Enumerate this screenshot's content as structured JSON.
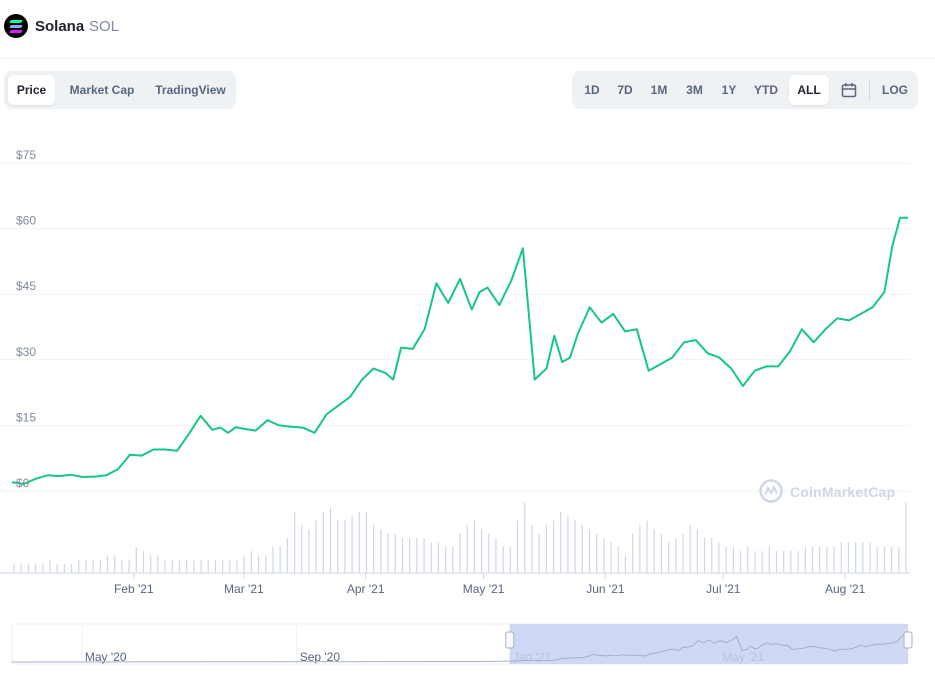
{
  "header": {
    "coin_name": "Solana",
    "coin_symbol": "SOL",
    "logo_icon": "solana-logo-icon"
  },
  "chart_tabs": [
    {
      "label": "Price",
      "active": true
    },
    {
      "label": "Market Cap",
      "active": false
    },
    {
      "label": "TradingView",
      "active": false
    }
  ],
  "range_buttons": [
    {
      "label": "1D",
      "active": false
    },
    {
      "label": "7D",
      "active": false
    },
    {
      "label": "1M",
      "active": false
    },
    {
      "label": "3M",
      "active": false
    },
    {
      "label": "1Y",
      "active": false
    },
    {
      "label": "YTD",
      "active": false
    },
    {
      "label": "ALL",
      "active": true
    }
  ],
  "calendar_icon": "calendar-icon",
  "log_label": "LOG",
  "watermark": {
    "text": "CoinMarketCap",
    "icon": "coinmarketcap-logo-icon"
  },
  "colors": {
    "line": "#16c784",
    "grid": "#eff2f5",
    "volume": "#cfd6e4",
    "navigator_fill": "#c8d1f5"
  },
  "chart_data": {
    "type": "line",
    "title": "",
    "ylim": [
      0,
      75
    ],
    "y_ticks": [
      "$0",
      "$15",
      "$30",
      "$45",
      "$60",
      "$75"
    ],
    "y_tick_values": [
      0,
      15,
      30,
      45,
      60,
      75
    ],
    "x_ticks": [
      "Feb '21",
      "Mar '21",
      "Apr '21",
      "May '21",
      "Jun '21",
      "Jul '21",
      "Aug '21"
    ],
    "x_tick_dates": [
      "2021-02-01",
      "2021-03-01",
      "2021-04-01",
      "2021-05-01",
      "2021-06-01",
      "2021-07-01",
      "2021-08-01"
    ],
    "x_range": [
      "2021-01-01",
      "2021-08-17"
    ],
    "grid": true,
    "series": [
      {
        "x": [
          "2021-01-01",
          "2021-01-04",
          "2021-01-07",
          "2021-01-10",
          "2021-01-13",
          "2021-01-16",
          "2021-01-19",
          "2021-01-22",
          "2021-01-25",
          "2021-01-28",
          "2021-01-31",
          "2021-02-03",
          "2021-02-06",
          "2021-02-09",
          "2021-02-12",
          "2021-02-15",
          "2021-02-18",
          "2021-02-21",
          "2021-02-23",
          "2021-02-25",
          "2021-02-27",
          "2021-03-01",
          "2021-03-04",
          "2021-03-07",
          "2021-03-10",
          "2021-03-13",
          "2021-03-16",
          "2021-03-19",
          "2021-03-22",
          "2021-03-25",
          "2021-03-28",
          "2021-03-31",
          "2021-04-03",
          "2021-04-06",
          "2021-04-08",
          "2021-04-10",
          "2021-04-13",
          "2021-04-16",
          "2021-04-19",
          "2021-04-22",
          "2021-04-25",
          "2021-04-28",
          "2021-04-30",
          "2021-05-02",
          "2021-05-05",
          "2021-05-08",
          "2021-05-11",
          "2021-05-14",
          "2021-05-17",
          "2021-05-19",
          "2021-05-21",
          "2021-05-23",
          "2021-05-25",
          "2021-05-28",
          "2021-05-31",
          "2021-06-03",
          "2021-06-06",
          "2021-06-09",
          "2021-06-12",
          "2021-06-15",
          "2021-06-18",
          "2021-06-21",
          "2021-06-24",
          "2021-06-27",
          "2021-06-30",
          "2021-07-03",
          "2021-07-06",
          "2021-07-09",
          "2021-07-12",
          "2021-07-15",
          "2021-07-18",
          "2021-07-21",
          "2021-07-24",
          "2021-07-27",
          "2021-07-30",
          "2021-08-02",
          "2021-08-05",
          "2021-08-08",
          "2021-08-11",
          "2021-08-13",
          "2021-08-15",
          "2021-08-17"
        ],
        "y": [
          2.0,
          1.6,
          2.8,
          3.6,
          3.4,
          3.7,
          3.2,
          3.3,
          3.6,
          5.0,
          8.3,
          8.1,
          9.5,
          9.5,
          9.2,
          13.0,
          17.2,
          14.0,
          14.5,
          13.3,
          14.6,
          14.2,
          13.8,
          16.2,
          15.0,
          14.7,
          14.5,
          13.3,
          17.5,
          19.5,
          21.5,
          25.4,
          28.0,
          27.0,
          25.5,
          32.8,
          32.5,
          37.0,
          47.5,
          43.0,
          48.5,
          41.5,
          45.5,
          46.5,
          42.5,
          48.0,
          55.5,
          25.5,
          28.0,
          35.5,
          29.5,
          30.5,
          36.0,
          42.0,
          38.5,
          40.5,
          36.5,
          37.0,
          27.5,
          29.0,
          30.5,
          34.0,
          34.5,
          31.5,
          30.5,
          28.0,
          24.0,
          27.5,
          28.5,
          28.5,
          32.0,
          37.0,
          34.0,
          37.0,
          39.5,
          39.0,
          40.5,
          42.0,
          45.5,
          56.0,
          62.5,
          62.5
        ]
      }
    ],
    "volume_note": "relative daily volume bars",
    "volume": [
      2,
      2,
      2,
      2,
      2,
      3,
      2,
      2,
      2,
      3,
      3,
      3,
      3,
      4,
      4,
      3,
      3,
      6,
      5,
      4,
      4,
      3,
      3,
      3,
      3,
      3,
      3,
      3,
      3,
      3,
      3,
      3,
      4,
      5,
      4,
      4,
      6,
      6,
      8,
      14,
      11,
      10,
      12,
      14,
      15,
      12,
      12,
      13,
      14,
      14,
      11,
      10,
      9,
      9,
      8,
      8,
      8,
      8,
      7,
      7,
      6,
      6,
      9,
      11,
      12,
      10,
      9,
      8,
      6,
      6,
      12,
      16,
      11,
      9,
      11,
      12,
      14,
      13,
      12,
      11,
      10,
      9,
      8,
      7,
      6,
      4,
      9,
      11,
      12,
      10,
      9,
      7,
      8,
      9,
      11,
      10,
      8,
      8,
      7,
      6,
      6,
      5,
      6,
      5,
      5,
      6,
      5,
      5,
      5,
      5,
      6,
      6,
      6,
      6,
      6,
      7,
      7,
      7,
      7,
      7,
      6,
      6,
      6,
      6,
      16
    ]
  },
  "navigator": {
    "ticks": [
      "May '20",
      "Sep '20",
      "Jan '21",
      "May '21"
    ],
    "tick_dates": [
      "2020-05-01",
      "2020-09-01",
      "2021-01-01",
      "2021-05-01"
    ],
    "x_range": [
      "2020-03-22",
      "2021-08-17"
    ],
    "selection": [
      "2021-01-01",
      "2021-08-17"
    ]
  }
}
